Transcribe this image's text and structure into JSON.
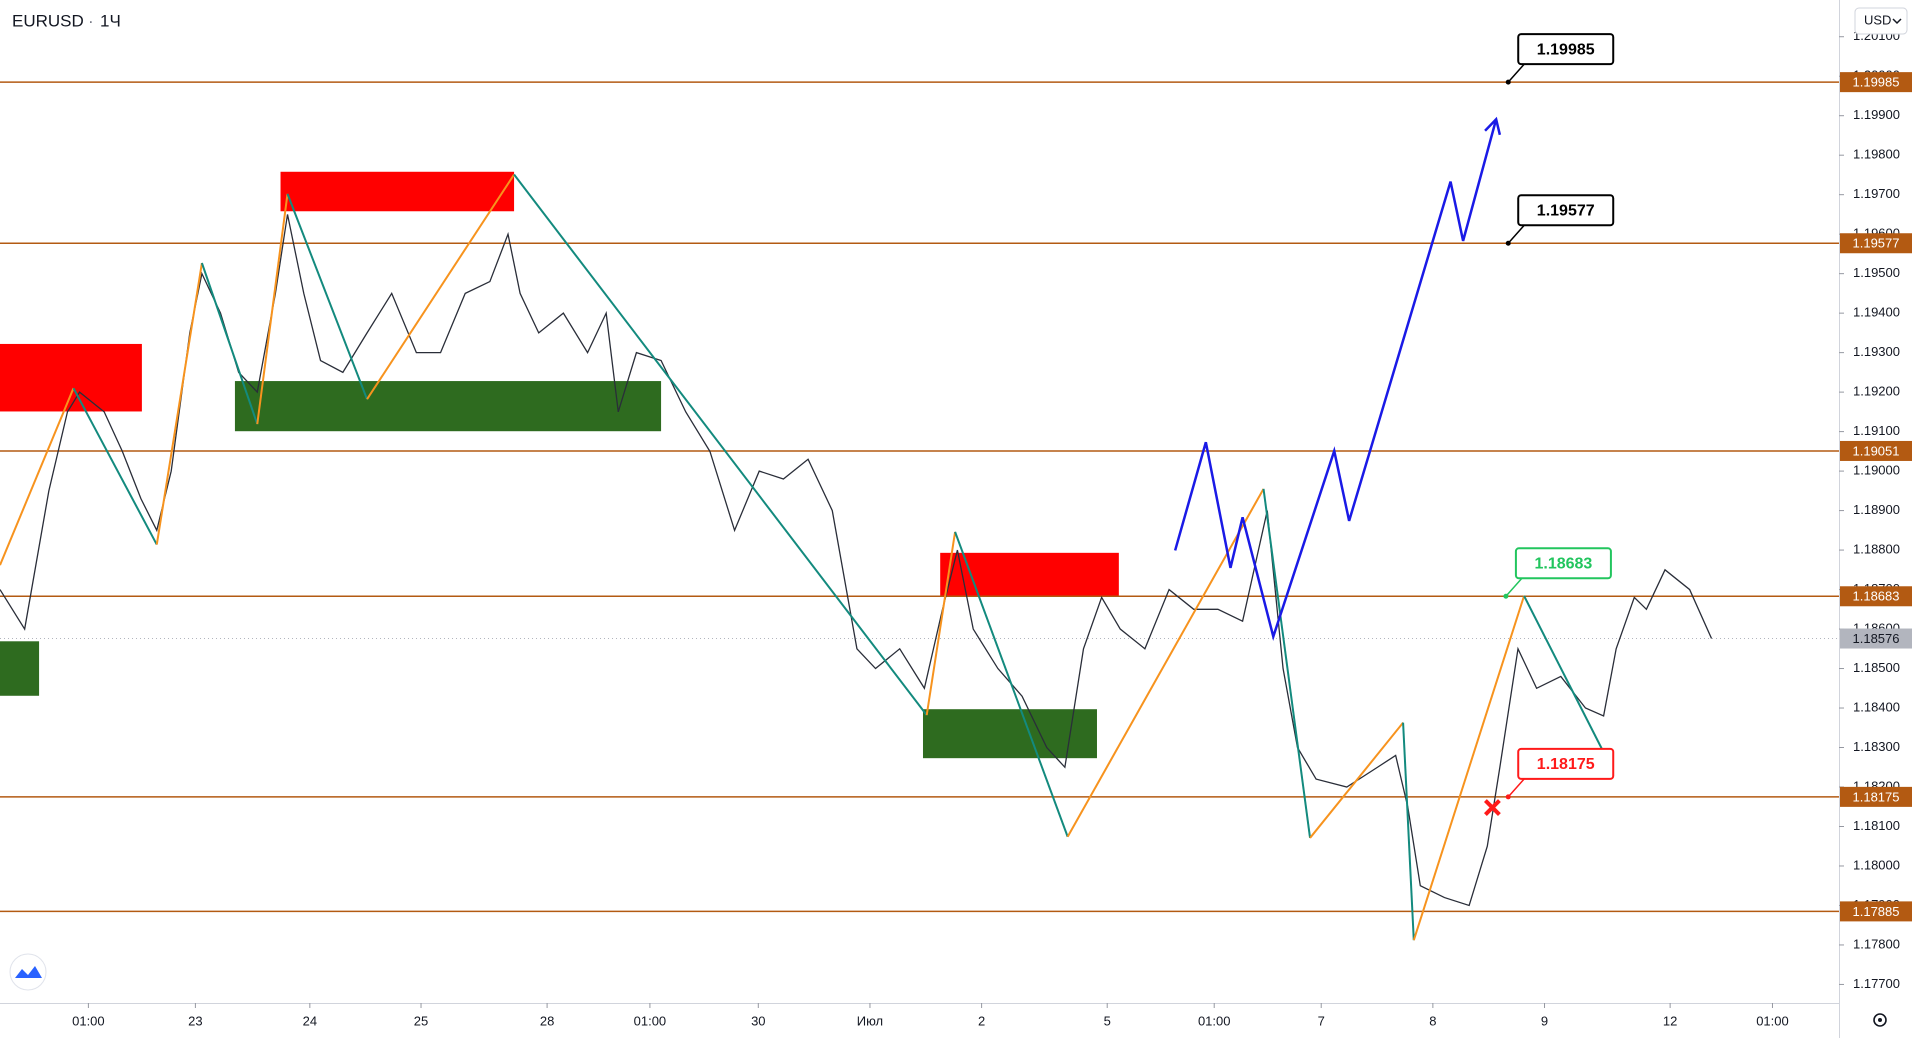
{
  "chart_data": {
    "type": "line",
    "symbol": "EURUSD",
    "interval": "1Ч",
    "currency": "USD",
    "xlim": [
      0,
      395.3
    ],
    "ylim": [
      1.17653,
      1.20193
    ],
    "xticks": [
      {
        "value": 19,
        "label": "01:00"
      },
      {
        "value": 42,
        "label": "23"
      },
      {
        "value": 66.6,
        "label": "24"
      },
      {
        "value": 90.5,
        "label": "25"
      },
      {
        "value": 117.6,
        "label": "28"
      },
      {
        "value": 139.7,
        "label": "01:00"
      },
      {
        "value": 163,
        "label": "30"
      },
      {
        "value": 187,
        "label": "Июл"
      },
      {
        "value": 211,
        "label": "2"
      },
      {
        "value": 238,
        "label": "5"
      },
      {
        "value": 261,
        "label": "01:00"
      },
      {
        "value": 284,
        "label": "7"
      },
      {
        "value": 308,
        "label": "8"
      },
      {
        "value": 332,
        "label": "9"
      },
      {
        "value": 359,
        "label": "12"
      },
      {
        "value": 381,
        "label": "01:00"
      }
    ],
    "yticks": [
      {
        "value": 1.201,
        "label": "1.20100"
      },
      {
        "value": 1.2,
        "label": "1.20000"
      },
      {
        "value": 1.199,
        "label": "1.19900"
      },
      {
        "value": 1.198,
        "label": "1.19800"
      },
      {
        "value": 1.197,
        "label": "1.19700"
      },
      {
        "value": 1.196,
        "label": "1.19600"
      },
      {
        "value": 1.195,
        "label": "1.19500"
      },
      {
        "value": 1.194,
        "label": "1.19400"
      },
      {
        "value": 1.193,
        "label": "1.19300"
      },
      {
        "value": 1.192,
        "label": "1.19200"
      },
      {
        "value": 1.191,
        "label": "1.19100"
      },
      {
        "value": 1.19,
        "label": "1.19000"
      },
      {
        "value": 1.189,
        "label": "1.18900"
      },
      {
        "value": 1.188,
        "label": "1.18800"
      },
      {
        "value": 1.187,
        "label": "1.18700"
      },
      {
        "value": 1.186,
        "label": "1.18600"
      },
      {
        "value": 1.185,
        "label": "1.18500"
      },
      {
        "value": 1.184,
        "label": "1.18400"
      },
      {
        "value": 1.183,
        "label": "1.18300"
      },
      {
        "value": 1.182,
        "label": "1.18200"
      },
      {
        "value": 1.181,
        "label": "1.18100"
      },
      {
        "value": 1.18,
        "label": "1.18000"
      },
      {
        "value": 1.179,
        "label": "1.17900"
      },
      {
        "value": 1.178,
        "label": "1.17800"
      },
      {
        "value": 1.177,
        "label": "1.17700"
      }
    ],
    "price": {
      "color": "#2a2e39",
      "x": [
        0,
        5.3,
        10.5,
        14.5,
        17.1,
        22.4,
        26.3,
        30.3,
        33.7,
        36.8,
        40.8,
        43.4,
        47.4,
        51.3,
        55.3,
        59.2,
        61.8,
        65.3,
        68.9,
        73.7,
        78.9,
        84.2,
        89.5,
        94.7,
        100,
        105.3,
        109.2,
        111.8,
        115.8,
        121.1,
        126.3,
        130.3,
        132.9,
        136.8,
        142.1,
        147.4,
        152.6,
        157.9,
        163.2,
        168.4,
        173.7,
        178.9,
        184.2,
        188.2,
        193.4,
        198.7,
        202.6,
        205.8,
        209.2,
        214.5,
        219.7,
        225,
        228.9,
        232.9,
        236.8,
        240.8,
        246.1,
        251.3,
        256.6,
        261.8,
        267.1,
        272.4,
        275.8,
        278.9,
        282.9,
        289.5,
        296.1,
        300,
        302.6,
        305.3,
        310.5,
        315.8,
        319.7,
        322.4,
        326.3,
        330.3,
        335.5,
        340.8,
        344.7,
        347.4,
        351.3,
        353.9,
        357.9,
        363.2,
        367.9
      ],
      "values": [
        1.187,
        1.186,
        1.1895,
        1.1915,
        1.192,
        1.1915,
        1.1905,
        1.1893,
        1.1885,
        1.19,
        1.1935,
        1.195,
        1.194,
        1.1925,
        1.192,
        1.1945,
        1.1965,
        1.1945,
        1.1928,
        1.1925,
        1.1935,
        1.1945,
        1.193,
        1.193,
        1.1945,
        1.1948,
        1.196,
        1.1945,
        1.1935,
        1.194,
        1.193,
        1.194,
        1.1915,
        1.193,
        1.1928,
        1.1915,
        1.1905,
        1.1885,
        1.19,
        1.1898,
        1.1903,
        1.189,
        1.1855,
        1.185,
        1.1855,
        1.1845,
        1.1865,
        1.188,
        1.186,
        1.185,
        1.1843,
        1.183,
        1.1825,
        1.1855,
        1.1868,
        1.186,
        1.1855,
        1.187,
        1.1865,
        1.1865,
        1.1862,
        1.189,
        1.185,
        1.183,
        1.1822,
        1.182,
        1.1825,
        1.1828,
        1.1815,
        1.1795,
        1.1792,
        1.179,
        1.1805,
        1.1825,
        1.1855,
        1.1845,
        1.1848,
        1.184,
        1.1838,
        1.1855,
        1.1868,
        1.1865,
        1.1875,
        1.187,
        1.18576
      ]
    },
    "zones": [
      {
        "color": "#ff0000",
        "x": [
          0,
          30.5
        ],
        "y": [
          1.19151,
          1.19322
        ]
      },
      {
        "color": "#2e6b1f",
        "x": [
          0,
          8.4
        ],
        "y": [
          1.18431,
          1.18569
        ]
      },
      {
        "color": "#ff0000",
        "x": [
          60.3,
          110.5
        ],
        "y": [
          1.19658,
          1.19758
        ]
      },
      {
        "color": "#2e6b1f",
        "x": [
          50.5,
          142.1
        ],
        "y": [
          1.19101,
          1.19228
        ]
      },
      {
        "color": "#ff0000",
        "x": [
          202.1,
          240.5
        ],
        "y": [
          1.18684,
          1.18793
        ]
      },
      {
        "color": "#2e6b1f",
        "x": [
          198.4,
          235.8
        ],
        "y": [
          1.18273,
          1.18397
        ]
      }
    ],
    "zigzag": {
      "up_color": "#f7931e",
      "down_color": "#138a7e",
      "x": [
        0,
        15.8,
        33.7,
        43.4,
        55.3,
        61.8,
        78.9,
        110.5,
        199.2,
        205.3,
        229.5,
        271.6,
        281.6,
        301.6,
        303.9,
        327.6,
        344.7
      ],
      "values": [
        1.18762,
        1.1921,
        1.18814,
        1.19527,
        1.19119,
        1.19702,
        1.19182,
        1.19751,
        1.18382,
        1.18846,
        1.18074,
        1.18955,
        1.18071,
        1.18363,
        1.17812,
        1.18684,
        1.18288
      ]
    },
    "projection": {
      "color": "#1a1ae6",
      "x": [
        252.6,
        259.2,
        264.5,
        267.1,
        273.7,
        286.8,
        290,
        311.8,
        314.5,
        321.6
      ],
      "values": [
        1.18799,
        1.19073,
        1.18755,
        1.18883,
        1.18581,
        1.19051,
        1.18874,
        1.19733,
        1.19583,
        1.19891
      ]
    },
    "levels": {
      "color": "#b35a12",
      "values": [
        1.19985,
        1.19577,
        1.19051,
        1.18683,
        1.18175,
        1.17885
      ]
    },
    "current_price": {
      "value": 1.18576,
      "color": "#b2b5be"
    },
    "callouts": [
      {
        "value": 1.19985,
        "x": 324.2,
        "color": "#000000"
      },
      {
        "value": 1.19577,
        "x": 324.2,
        "color": "#000000"
      },
      {
        "value": 1.18683,
        "x": 323.7,
        "color": "#22c55e"
      },
      {
        "value": 1.18175,
        "x": 324.2,
        "color": "#ff1a1a"
      }
    ],
    "stop_marker": {
      "x": 320.8,
      "value": 1.18148,
      "color": "#ff1a1a"
    }
  }
}
